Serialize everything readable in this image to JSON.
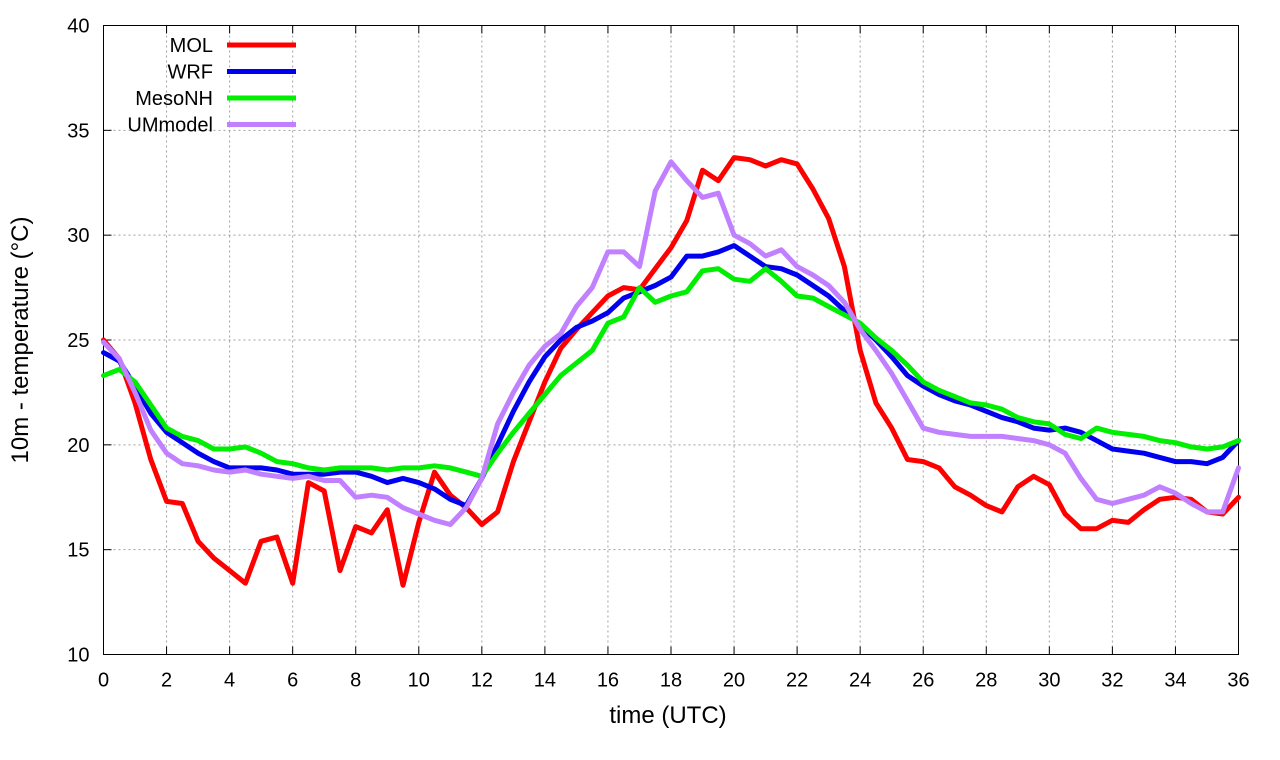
{
  "chart_data": {
    "type": "line",
    "title": "",
    "xlabel": "time (UTC)",
    "ylabel": "10m - temperature (°C)",
    "xlim": [
      0,
      36
    ],
    "ylim": [
      10,
      40
    ],
    "xticks": [
      0,
      2,
      4,
      6,
      8,
      10,
      12,
      14,
      16,
      18,
      20,
      22,
      24,
      26,
      28,
      30,
      32,
      34,
      36
    ],
    "yticks": [
      10,
      15,
      20,
      25,
      30,
      35,
      40
    ],
    "grid": true,
    "legend_position": "top-left",
    "series": [
      {
        "name": "MOL",
        "color": "#ff0000",
        "x": [
          0,
          0.5,
          1,
          1.5,
          2,
          2.5,
          3,
          3.5,
          4,
          4.5,
          5,
          5.5,
          6,
          6.5,
          7,
          7.5,
          8,
          8.5,
          9,
          9.5,
          10,
          10.5,
          11,
          11.5,
          12,
          12.5,
          13,
          13.5,
          14,
          14.5,
          15,
          15.5,
          16,
          16.5,
          17,
          17.5,
          18,
          18.5,
          19,
          19.5,
          20,
          20.5,
          21,
          21.5,
          22,
          22.5,
          23,
          23.5,
          24,
          24.5,
          25,
          25.5,
          26,
          26.5,
          27,
          27.5,
          28,
          28.5,
          29,
          29.5,
          30,
          30.5,
          31,
          31.5,
          32,
          32.5,
          33,
          33.5,
          34,
          34.5,
          35,
          35.5,
          36
        ],
        "values": [
          25,
          24.1,
          22,
          19.3,
          17.3,
          17.2,
          15.4,
          14.6,
          14.0,
          13.4,
          15.4,
          15.6,
          13.4,
          18.2,
          17.8,
          14.0,
          16.1,
          15.8,
          16.9,
          13.3,
          16.3,
          18.7,
          17.6,
          17.0,
          16.2,
          16.8,
          19.2,
          21.1,
          23.0,
          24.6,
          25.5,
          26.3,
          27.1,
          27.5,
          27.4,
          28.4,
          29.4,
          30.7,
          33.1,
          32.6,
          33.7,
          33.6,
          33.3,
          33.6,
          33.4,
          32.2,
          30.8,
          28.5,
          24.5,
          22.0,
          20.8,
          19.3,
          19.2,
          18.9,
          18.0,
          17.6,
          17.1,
          16.8,
          18.0,
          18.5,
          18.1,
          16.7,
          16.0,
          16.0,
          16.4,
          16.3,
          16.9,
          17.4,
          17.5,
          17.4,
          16.8,
          16.7,
          17.5
        ]
      },
      {
        "name": "WRF",
        "color": "#0000ee",
        "x": [
          0,
          0.5,
          1,
          1.5,
          2,
          2.5,
          3,
          3.5,
          4,
          4.5,
          5,
          5.5,
          6,
          6.5,
          7,
          7.5,
          8,
          8.5,
          9,
          9.5,
          10,
          10.5,
          11,
          11.5,
          12,
          12.5,
          13,
          13.5,
          14,
          14.5,
          15,
          15.5,
          16,
          16.5,
          17,
          17.5,
          18,
          18.5,
          19,
          19.5,
          20,
          20.5,
          21,
          21.5,
          22,
          22.5,
          23,
          23.5,
          24,
          24.5,
          25,
          25.5,
          26,
          26.5,
          27,
          27.5,
          28,
          28.5,
          29,
          29.5,
          30,
          30.5,
          31,
          31.5,
          32,
          32.5,
          33,
          33.5,
          34,
          34.5,
          35,
          35.5,
          36
        ],
        "values": [
          24.4,
          24.0,
          22.8,
          21.5,
          20.6,
          20.1,
          19.6,
          19.2,
          18.9,
          18.9,
          18.9,
          18.8,
          18.6,
          18.6,
          18.6,
          18.7,
          18.7,
          18.5,
          18.2,
          18.4,
          18.2,
          17.9,
          17.4,
          17.1,
          18.4,
          20.0,
          21.6,
          23.0,
          24.2,
          25.0,
          25.6,
          25.9,
          26.3,
          27.0,
          27.3,
          27.6,
          28.0,
          29.0,
          29.0,
          29.2,
          29.5,
          29.0,
          28.5,
          28.4,
          28.1,
          27.6,
          27.1,
          26.4,
          25.7,
          25.0,
          24.2,
          23.3,
          22.8,
          22.4,
          22.1,
          21.9,
          21.6,
          21.3,
          21.1,
          20.8,
          20.7,
          20.8,
          20.6,
          20.2,
          19.8,
          19.7,
          19.6,
          19.4,
          19.2,
          19.2,
          19.1,
          19.4,
          20.2
        ]
      },
      {
        "name": "MesoNH",
        "color": "#00ee00",
        "x": [
          0,
          0.5,
          1,
          1.5,
          2,
          2.5,
          3,
          3.5,
          4,
          4.5,
          5,
          5.5,
          6,
          6.5,
          7,
          7.5,
          8,
          8.5,
          9,
          9.5,
          10,
          10.5,
          11,
          11.5,
          12,
          12.5,
          13,
          13.5,
          14,
          14.5,
          15,
          15.5,
          16,
          16.5,
          17,
          17.5,
          18,
          18.5,
          19,
          19.5,
          20,
          20.5,
          21,
          21.5,
          22,
          22.5,
          23,
          23.5,
          24,
          24.5,
          25,
          25.5,
          26,
          26.5,
          27,
          27.5,
          28,
          28.5,
          29,
          29.5,
          30,
          30.5,
          31,
          31.5,
          32,
          32.5,
          33,
          33.5,
          34,
          34.5,
          35,
          35.5,
          36
        ],
        "values": [
          23.3,
          23.6,
          23.0,
          21.9,
          20.8,
          20.4,
          20.2,
          19.8,
          19.8,
          19.9,
          19.6,
          19.2,
          19.1,
          18.9,
          18.8,
          18.9,
          18.9,
          18.9,
          18.8,
          18.9,
          18.9,
          19.0,
          18.9,
          18.7,
          18.5,
          19.6,
          20.6,
          21.5,
          22.4,
          23.3,
          23.9,
          24.5,
          25.8,
          26.1,
          27.5,
          26.8,
          27.1,
          27.3,
          28.3,
          28.4,
          27.9,
          27.8,
          28.4,
          27.8,
          27.1,
          27.0,
          26.6,
          26.2,
          25.8,
          25.1,
          24.5,
          23.8,
          23.0,
          22.6,
          22.3,
          22.0,
          21.9,
          21.7,
          21.3,
          21.1,
          21.0,
          20.5,
          20.3,
          20.8,
          20.6,
          20.5,
          20.4,
          20.2,
          20.1,
          19.9,
          19.8,
          19.9,
          20.2
        ]
      },
      {
        "name": "UMmodel",
        "color": "#c080ff",
        "x": [
          0,
          0.5,
          1,
          1.5,
          2,
          2.5,
          3,
          3.5,
          4,
          4.5,
          5,
          5.5,
          6,
          6.5,
          7,
          7.5,
          8,
          8.5,
          9,
          9.5,
          10,
          10.5,
          11,
          11.5,
          12,
          12.5,
          13,
          13.5,
          14,
          14.5,
          15,
          15.5,
          16,
          16.5,
          17,
          17.5,
          18,
          18.5,
          19,
          19.5,
          20,
          20.5,
          21,
          21.5,
          22,
          22.5,
          23,
          23.5,
          24,
          24.5,
          25,
          25.5,
          26,
          26.5,
          27,
          27.5,
          28,
          28.5,
          29,
          29.5,
          30,
          30.5,
          31,
          31.5,
          32,
          32.5,
          33,
          33.5,
          34,
          34.5,
          35,
          35.5,
          36
        ],
        "values": [
          24.9,
          24.1,
          22.5,
          20.7,
          19.6,
          19.1,
          19.0,
          18.8,
          18.7,
          18.8,
          18.6,
          18.5,
          18.4,
          18.5,
          18.3,
          18.3,
          17.5,
          17.6,
          17.5,
          17.0,
          16.7,
          16.4,
          16.2,
          17.0,
          18.4,
          21.0,
          22.5,
          23.8,
          24.7,
          25.3,
          26.6,
          27.5,
          29.2,
          29.2,
          28.5,
          32.1,
          33.5,
          32.6,
          31.8,
          32.0,
          30.0,
          29.6,
          29.0,
          29.3,
          28.5,
          28.1,
          27.6,
          26.8,
          25.5,
          24.5,
          23.4,
          22.1,
          20.8,
          20.6,
          20.5,
          20.4,
          20.4,
          20.4,
          20.3,
          20.2,
          20.0,
          19.6,
          18.4,
          17.4,
          17.2,
          17.4,
          17.6,
          18.0,
          17.7,
          17.2,
          16.8,
          16.8,
          18.9
        ]
      }
    ]
  }
}
